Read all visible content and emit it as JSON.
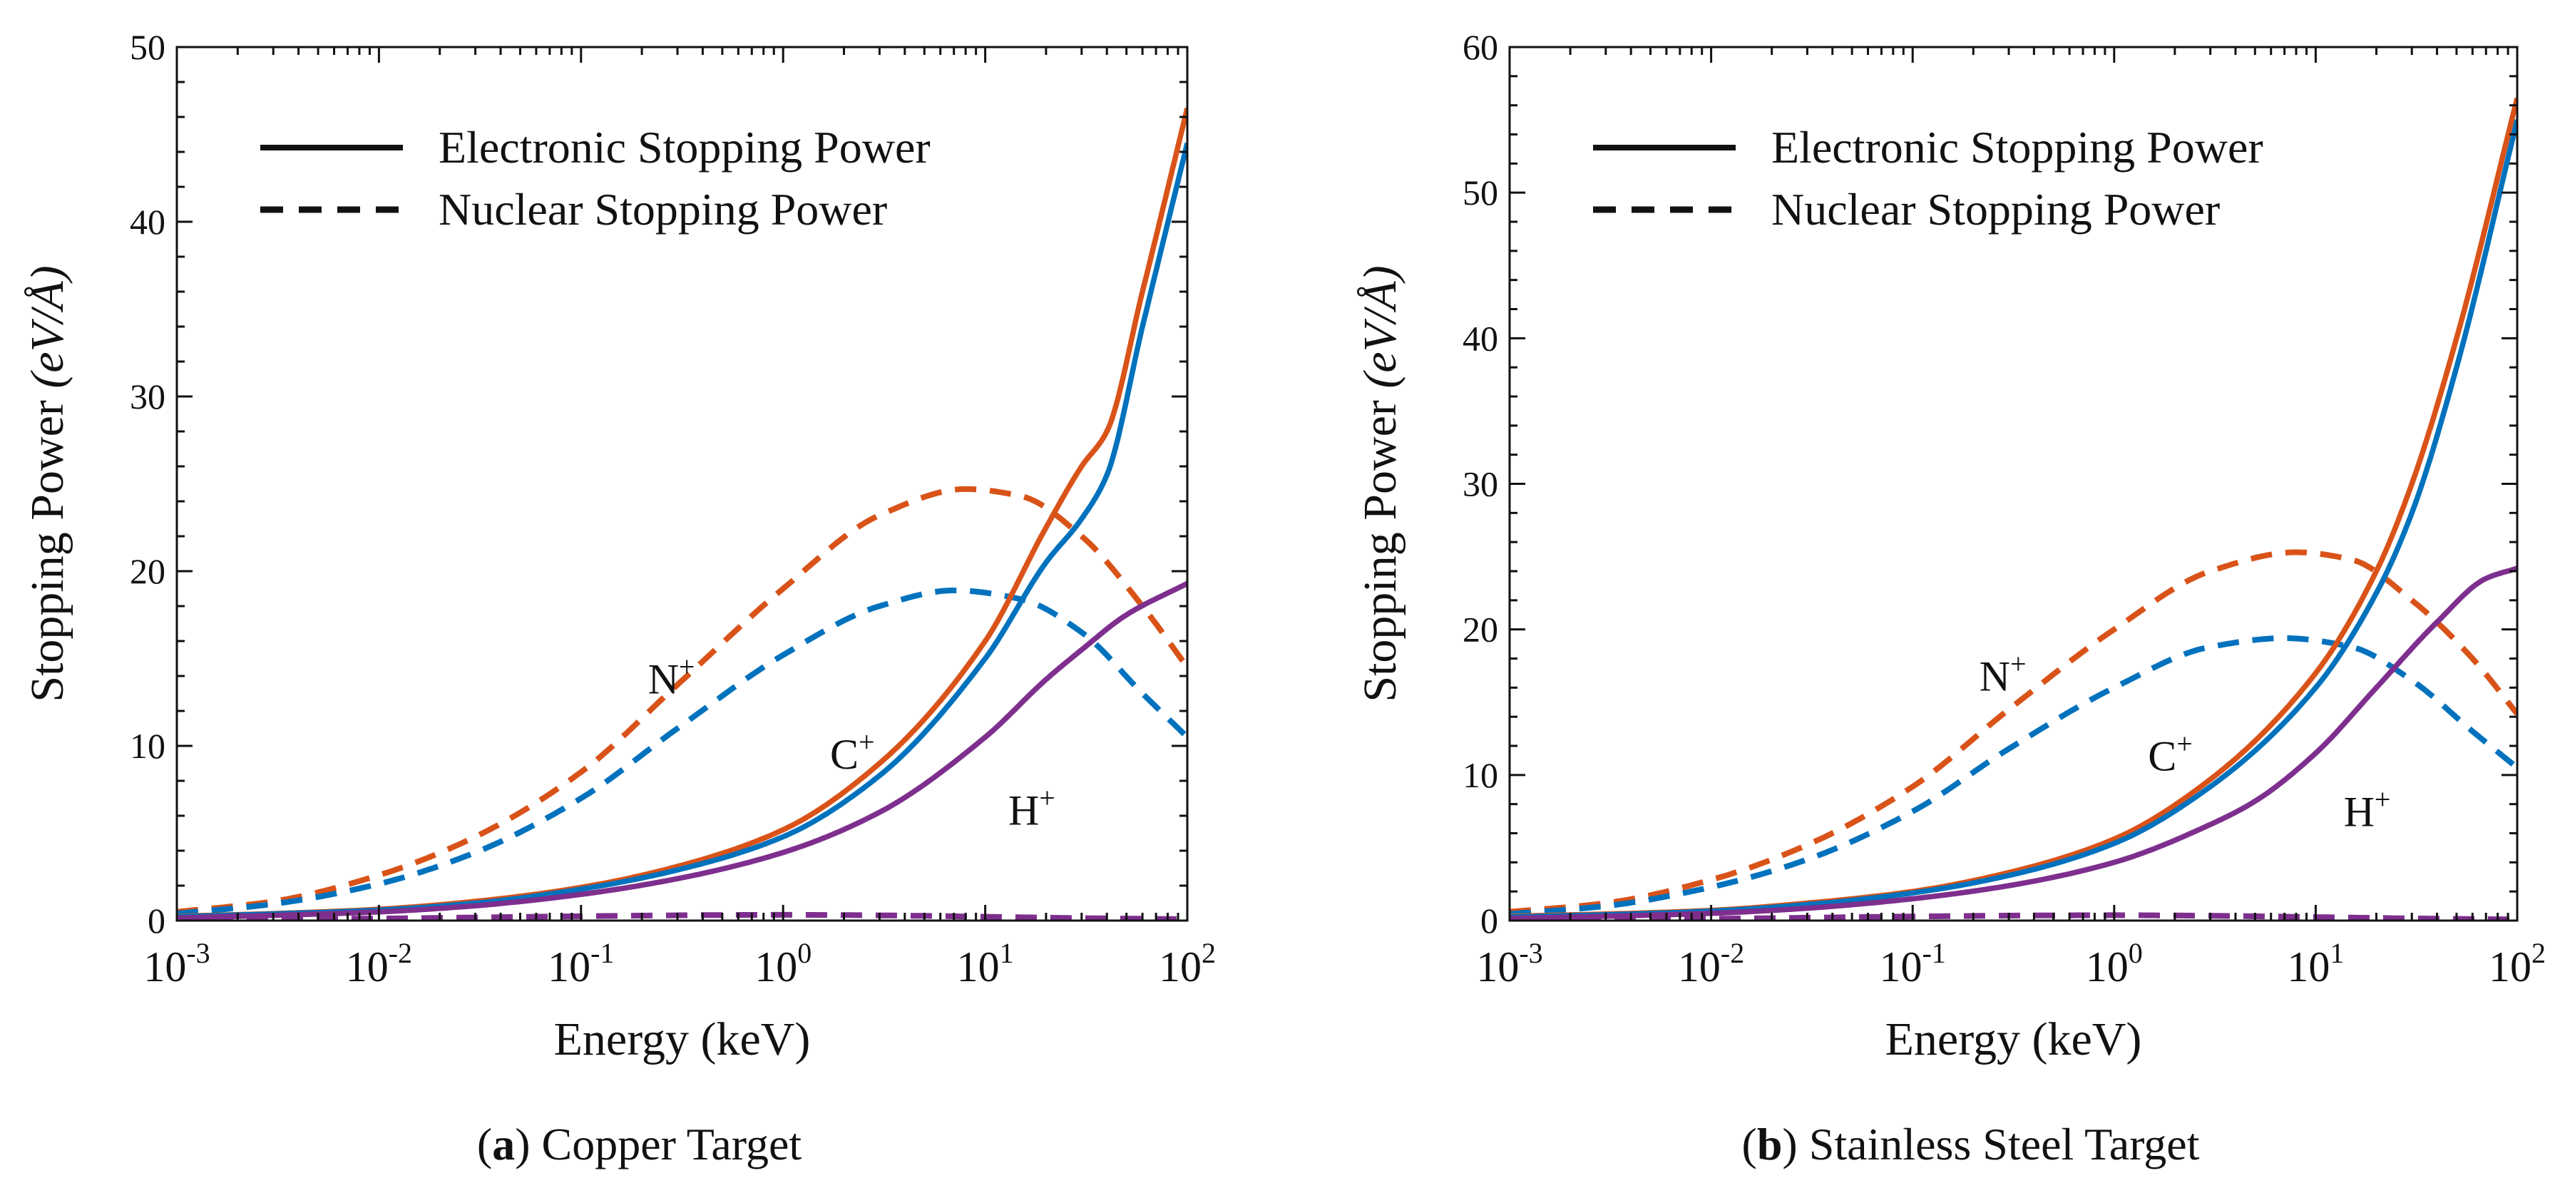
{
  "chart_data": [
    {
      "type": "line",
      "caption_letter": "a",
      "caption_text": "Copper Target",
      "xlabel": "Energy (keV)",
      "ylabel_main": "Stopping Power",
      "ylabel_unit": "(eV/Å)",
      "xscale": "log",
      "xlim": [
        0.001,
        100
      ],
      "ylim": [
        0,
        50
      ],
      "yticks": [
        0,
        10,
        20,
        30,
        40,
        50
      ],
      "xticks": [
        0.001,
        0.01,
        0.1,
        1,
        10,
        100
      ],
      "xtick_labels": [
        {
          "base": "10",
          "exp": "-3"
        },
        {
          "base": "10",
          "exp": "-2"
        },
        {
          "base": "10",
          "exp": "-1"
        },
        {
          "base": "10",
          "exp": "0"
        },
        {
          "base": "10",
          "exp": "1"
        },
        {
          "base": "10",
          "exp": "2"
        }
      ],
      "legend": {
        "placement": "top-left",
        "solid": "Electronic Stopping Power",
        "dashed": "Nuclear Stopping Power"
      },
      "annotations": [
        {
          "ion": "N",
          "charge": "+",
          "x": 0.28,
          "y": 13.0
        },
        {
          "ion": "C",
          "charge": "+",
          "x": 2.2,
          "y": 8.7
        },
        {
          "ion": "H",
          "charge": "+",
          "x": 17,
          "y": 5.5
        }
      ],
      "series": [
        {
          "ion": "N+",
          "kind": "electronic",
          "color": "#d95319",
          "x": [
            0.001,
            0.003,
            0.01,
            0.03,
            0.1,
            0.3,
            1,
            3,
            10,
            20,
            30,
            40,
            60,
            100
          ],
          "y": [
            0.25,
            0.4,
            0.65,
            1.1,
            1.9,
            3.1,
            5.2,
            9.0,
            16.0,
            22.5,
            26.0,
            28.0,
            36.0,
            46.5
          ]
        },
        {
          "ion": "C+",
          "kind": "electronic",
          "color": "#0072bd",
          "x": [
            0.001,
            0.003,
            0.01,
            0.03,
            0.1,
            0.3,
            1,
            3,
            10,
            20,
            30,
            40,
            60,
            100
          ],
          "y": [
            0.22,
            0.38,
            0.6,
            1.0,
            1.8,
            2.9,
            4.8,
            8.3,
            15.0,
            20.5,
            23.0,
            25.5,
            34.0,
            44.5
          ]
        },
        {
          "ion": "H+",
          "kind": "electronic",
          "color": "#7e2f8e",
          "x": [
            0.001,
            0.003,
            0.01,
            0.03,
            0.1,
            0.3,
            1,
            3,
            10,
            20,
            30,
            50,
            100
          ],
          "y": [
            0.15,
            0.3,
            0.5,
            0.85,
            1.5,
            2.4,
            3.9,
            6.2,
            10.5,
            13.8,
            15.5,
            17.5,
            19.3
          ]
        },
        {
          "ion": "N+",
          "kind": "nuclear",
          "color": "#d95319",
          "x": [
            0.001,
            0.003,
            0.01,
            0.03,
            0.1,
            0.3,
            1,
            3,
            8,
            15,
            30,
            60,
            100
          ],
          "y": [
            0.5,
            1.1,
            2.6,
            4.8,
            8.5,
            13.5,
            19.0,
            23.2,
            24.7,
            24.3,
            22.0,
            18.0,
            14.5
          ]
        },
        {
          "ion": "C+",
          "kind": "nuclear",
          "color": "#0072bd",
          "x": [
            0.001,
            0.003,
            0.01,
            0.03,
            0.1,
            0.3,
            1,
            3,
            7,
            15,
            30,
            60,
            100
          ],
          "y": [
            0.4,
            0.95,
            2.1,
            3.9,
            7.0,
            11.0,
            15.2,
            18.0,
            18.9,
            18.4,
            16.5,
            13.0,
            10.5
          ]
        },
        {
          "ion": "H+",
          "kind": "nuclear",
          "color": "#7e2f8e",
          "x": [
            0.001,
            0.01,
            0.1,
            0.5,
            1,
            3,
            10,
            30,
            100
          ],
          "y": [
            0.05,
            0.12,
            0.25,
            0.32,
            0.33,
            0.3,
            0.22,
            0.14,
            0.08
          ]
        }
      ]
    },
    {
      "type": "line",
      "caption_letter": "b",
      "caption_text": "Stainless Steel Target",
      "xlabel": "Energy (keV)",
      "ylabel_main": "Stopping Power",
      "ylabel_unit": "(eV/Å)",
      "xscale": "log",
      "xlim": [
        0.001,
        100
      ],
      "ylim": [
        0,
        60
      ],
      "yticks": [
        0,
        10,
        20,
        30,
        40,
        50,
        60
      ],
      "xticks": [
        0.001,
        0.01,
        0.1,
        1,
        10,
        100
      ],
      "xtick_labels": [
        {
          "base": "10",
          "exp": "-3"
        },
        {
          "base": "10",
          "exp": "-2"
        },
        {
          "base": "10",
          "exp": "-1"
        },
        {
          "base": "10",
          "exp": "0"
        },
        {
          "base": "10",
          "exp": "1"
        },
        {
          "base": "10",
          "exp": "2"
        }
      ],
      "legend": {
        "placement": "top-left",
        "solid": "Electronic Stopping Power",
        "dashed": "Nuclear Stopping Power"
      },
      "annotations": [
        {
          "ion": "N",
          "charge": "+",
          "x": 0.28,
          "y": 15.8
        },
        {
          "ion": "C",
          "charge": "+",
          "x": 1.9,
          "y": 10.3
        },
        {
          "ion": "H",
          "charge": "+",
          "x": 18,
          "y": 6.5
        }
      ],
      "series": [
        {
          "ion": "N+",
          "kind": "electronic",
          "color": "#d95319",
          "x": [
            0.001,
            0.003,
            0.01,
            0.03,
            0.1,
            0.3,
            1,
            3,
            10,
            20,
            30,
            50,
            100
          ],
          "y": [
            0.3,
            0.45,
            0.7,
            1.2,
            2.0,
            3.3,
            5.6,
            9.7,
            17.0,
            24.0,
            30.0,
            40.0,
            56.5
          ]
        },
        {
          "ion": "C+",
          "kind": "electronic",
          "color": "#0072bd",
          "x": [
            0.001,
            0.003,
            0.01,
            0.03,
            0.1,
            0.3,
            1,
            3,
            10,
            20,
            30,
            50,
            100
          ],
          "y": [
            0.25,
            0.4,
            0.65,
            1.1,
            1.9,
            3.1,
            5.3,
            9.2,
            16.0,
            22.5,
            28.0,
            38.0,
            55.0
          ]
        },
        {
          "ion": "H+",
          "kind": "electronic",
          "color": "#7e2f8e",
          "x": [
            0.001,
            0.003,
            0.01,
            0.03,
            0.1,
            0.3,
            1,
            3,
            5,
            10,
            20,
            40,
            70,
            100
          ],
          "y": [
            0.15,
            0.3,
            0.5,
            0.85,
            1.5,
            2.4,
            4.0,
            6.6,
            8.2,
            11.5,
            16.0,
            20.5,
            23.5,
            24.2
          ]
        },
        {
          "ion": "N+",
          "kind": "nuclear",
          "color": "#d95319",
          "x": [
            0.001,
            0.003,
            0.01,
            0.03,
            0.1,
            0.3,
            1,
            3,
            8,
            15,
            30,
            60,
            100
          ],
          "y": [
            0.6,
            1.2,
            2.8,
            5.2,
            9.2,
            14.5,
            20.0,
            24.0,
            25.3,
            24.8,
            22.0,
            18.0,
            14.2
          ]
        },
        {
          "ion": "C+",
          "kind": "nuclear",
          "color": "#0072bd",
          "x": [
            0.001,
            0.003,
            0.01,
            0.03,
            0.1,
            0.3,
            1,
            3,
            7,
            15,
            30,
            60,
            100
          ],
          "y": [
            0.45,
            1.0,
            2.3,
            4.2,
            7.5,
            11.8,
            16.0,
            18.8,
            19.4,
            18.8,
            16.5,
            13.0,
            10.5
          ]
        },
        {
          "ion": "H+",
          "kind": "nuclear",
          "color": "#7e2f8e",
          "x": [
            0.001,
            0.01,
            0.1,
            0.5,
            1,
            3,
            10,
            30,
            100
          ],
          "y": [
            0.05,
            0.13,
            0.28,
            0.36,
            0.37,
            0.33,
            0.24,
            0.15,
            0.08
          ]
        }
      ]
    }
  ]
}
